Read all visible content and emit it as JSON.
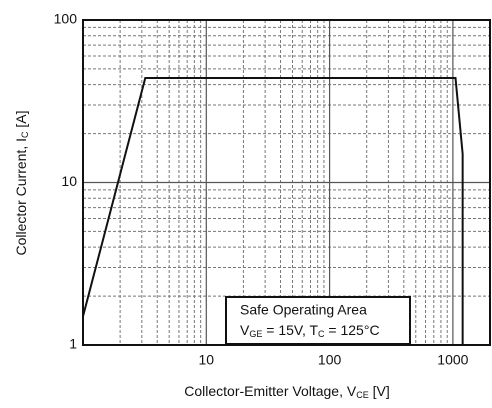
{
  "chart_data": {
    "type": "line",
    "x_label": [
      "Collector-Emitter Voltage, V",
      "CE",
      " [V]"
    ],
    "y_label": [
      "Collector Current, I",
      "C",
      " [A]"
    ],
    "annotation": {
      "title": "Safe Operating Area",
      "line": [
        "V",
        "GE",
        " = 15V, T",
        "C",
        " = 125°C"
      ]
    },
    "xscale": "log",
    "yscale": "log",
    "xlim": [
      1,
      2000
    ],
    "ylim": [
      1,
      100
    ],
    "xticks": [
      10,
      100,
      1000
    ],
    "yticks": [
      1,
      10,
      100
    ],
    "x_minor_grid": [
      2,
      3,
      4,
      5,
      6,
      7,
      8,
      9,
      20,
      30,
      40,
      50,
      60,
      70,
      80,
      90,
      200,
      300,
      400,
      500,
      600,
      700,
      800,
      900
    ],
    "y_minor_grid": [
      2,
      3,
      4,
      5,
      6,
      7,
      8,
      9,
      20,
      30,
      40,
      50,
      60,
      70,
      80,
      90
    ],
    "grid": true,
    "series": [
      {
        "name": "SOA",
        "color": "#111111",
        "x": [
          1,
          3.2,
          1050,
          1200,
          1200
        ],
        "values": [
          1.5,
          44,
          44,
          15,
          1
        ]
      }
    ]
  }
}
